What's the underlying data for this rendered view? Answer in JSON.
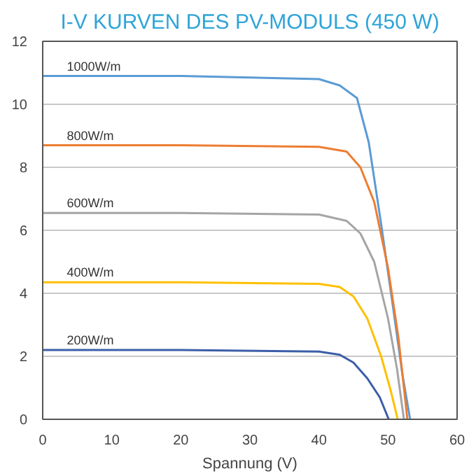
{
  "chart_data": {
    "type": "line",
    "title": "I-V KURVEN DES PV-MODULS (450 W)",
    "xlabel": "Spannung (V)",
    "xlim": [
      0,
      60
    ],
    "xticks": [
      0,
      10,
      20,
      30,
      40,
      50,
      60
    ],
    "ylim": [
      0,
      12
    ],
    "yticks": [
      0,
      2,
      4,
      6,
      8,
      10,
      12
    ],
    "grid": "y",
    "legend": false,
    "series": [
      {
        "name": "1000W/m",
        "color": "#5b9bd5",
        "x": [
          0,
          20,
          40,
          43,
          45.5,
          47.2,
          49,
          50.7,
          52.1,
          53.2
        ],
        "values": [
          10.9,
          10.9,
          10.8,
          10.6,
          10.2,
          8.8,
          6.2,
          3.6,
          1.4,
          0
        ]
      },
      {
        "name": "800W/m",
        "color": "#ed7d31",
        "x": [
          0,
          20,
          40,
          44,
          46,
          48,
          50,
          51.5,
          52.8
        ],
        "values": [
          8.7,
          8.7,
          8.65,
          8.5,
          8.0,
          6.9,
          4.8,
          2.6,
          0
        ]
      },
      {
        "name": "600W/m",
        "color": "#a5a5a5",
        "x": [
          0,
          20,
          40,
          44,
          46,
          48,
          50,
          51.3,
          52.3
        ],
        "values": [
          6.55,
          6.55,
          6.5,
          6.3,
          5.9,
          5.0,
          3.2,
          1.6,
          0
        ]
      },
      {
        "name": "400W/m",
        "color": "#ffc000",
        "x": [
          0,
          20,
          40,
          43,
          45,
          47,
          49,
          50.4,
          51.4
        ],
        "values": [
          4.35,
          4.35,
          4.3,
          4.2,
          3.9,
          3.2,
          2.0,
          0.9,
          0
        ]
      },
      {
        "name": "200W/m",
        "color": "#3c5ea8",
        "x": [
          0,
          20,
          40,
          43,
          45,
          47,
          48.8,
          50.1
        ],
        "values": [
          2.2,
          2.2,
          2.15,
          2.05,
          1.8,
          1.3,
          0.7,
          0
        ]
      }
    ]
  }
}
